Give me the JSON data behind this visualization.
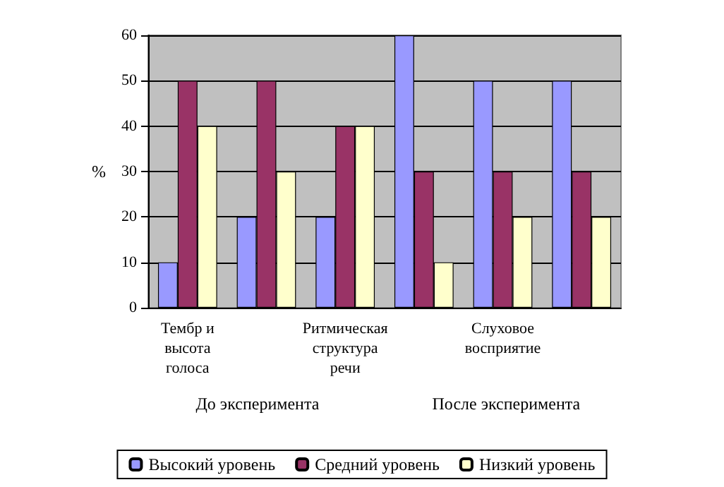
{
  "chart_data": {
    "type": "bar",
    "ylabel": "%",
    "categories": [
      "Тембр и высота голоса",
      null,
      "Ритмическая структура речи",
      null,
      "Слуховое восприятие",
      null
    ],
    "series": [
      {
        "name": "Высокий уровень",
        "color": "#9999ff",
        "values": [
          10,
          20,
          20,
          60,
          50,
          50
        ]
      },
      {
        "name": "Средний уровень",
        "color": "#993366",
        "values": [
          50,
          50,
          40,
          30,
          30,
          30
        ]
      },
      {
        "name": "Низкий уровень",
        "color": "#ffffcc",
        "values": [
          40,
          30,
          40,
          10,
          20,
          20
        ]
      }
    ],
    "ylim": [
      0,
      60
    ],
    "yticks": [
      0,
      10,
      20,
      30,
      40,
      50,
      60
    ],
    "grid": "y",
    "legend": "bottom",
    "annotations": [
      "До эксперимента",
      "После эксперимента"
    ]
  }
}
